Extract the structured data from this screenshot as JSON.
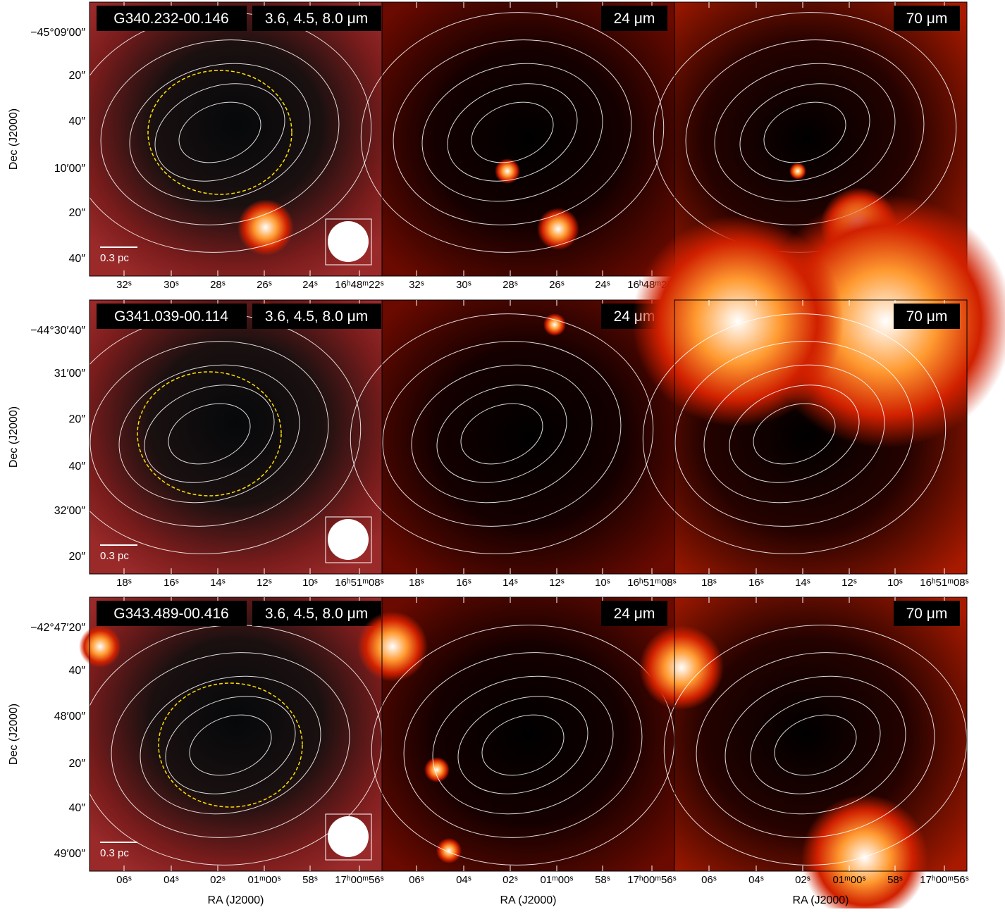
{
  "axis_labels": {
    "dec": "Dec (J2000)",
    "ra": "RA (J2000)"
  },
  "rows": [
    {
      "source": "G340.232-00.146",
      "bands": [
        "3.6, 4.5, 8.0 μm",
        "24 μm",
        "70 μm"
      ],
      "scale_bar": "0.3 pc",
      "dec_ticks": [
        "−45°09′00″",
        "20″",
        "40″",
        "10′00″",
        "20″",
        "40″"
      ],
      "ra_ticks": [
        "32ˢ",
        "30ˢ",
        "28ˢ",
        "26ˢ",
        "24ˢ",
        "16ʰ48ᵐ22ˢ"
      ]
    },
    {
      "source": "G341.039-00.114",
      "bands": [
        "3.6, 4.5, 8.0 μm",
        "24 μm",
        "70 μm"
      ],
      "scale_bar": "0.3 pc",
      "dec_ticks": [
        "−44°30′40″",
        "31′00″",
        "20″",
        "40″",
        "32′00″",
        "20″"
      ],
      "ra_ticks": [
        "18ˢ",
        "16ˢ",
        "14ˢ",
        "12ˢ",
        "10ˢ",
        "16ʰ51ᵐ08ˢ"
      ]
    },
    {
      "source": "G343.489-00.416",
      "bands": [
        "3.6, 4.5, 8.0 μm",
        "24 μm",
        "70 μm"
      ],
      "scale_bar": "0.3 pc",
      "dec_ticks": [
        "−42°47′20″",
        "40″",
        "48′00″",
        "20″",
        "40″",
        "49′00″"
      ],
      "ra_ticks": [
        "06ˢ",
        "04ˢ",
        "02ˢ",
        "01ᵐ00ˢ",
        "58ˢ",
        "17ʰ00ᵐ56ˢ"
      ]
    }
  ]
}
